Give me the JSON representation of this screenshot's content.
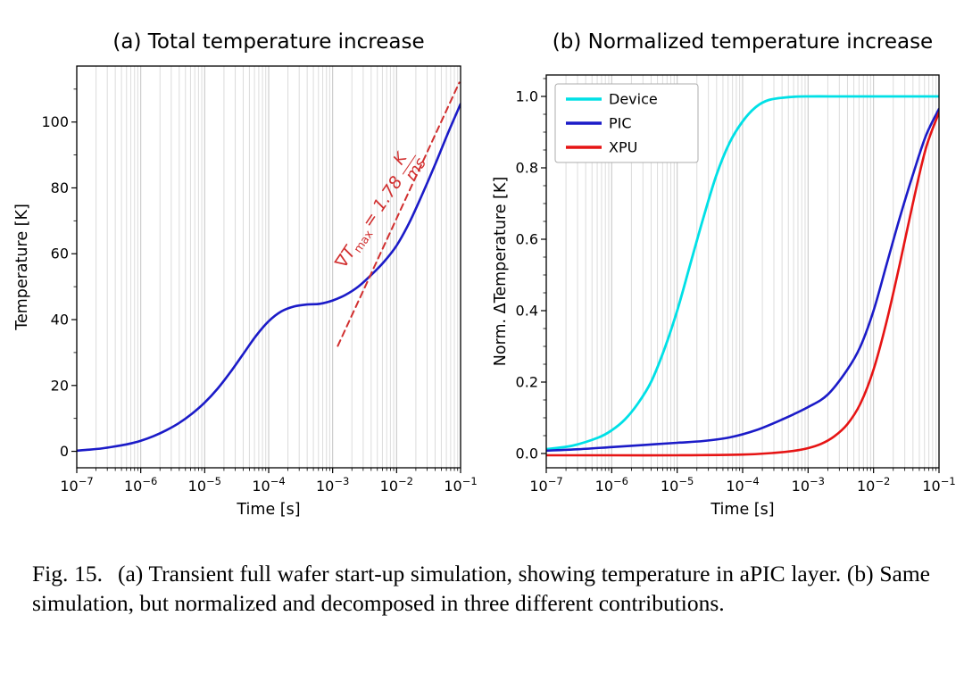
{
  "figure": {
    "caption_label": "Fig. 15.",
    "caption_text": "(a) Transient full wafer start-up simulation, showing temperature in aPIC layer. (b) Same simulation, but normalized and decomposed in three different contributions."
  },
  "colors": {
    "curve_blue": "#1b1bc8",
    "device_cyan": "#00e0e6",
    "xpu_red": "#e61414",
    "tangent_red": "#d12f2f",
    "grid_minor": "#dcdcdc",
    "grid_major": "#c9c9c9",
    "spine": "#000000"
  },
  "chart_data": [
    {
      "type": "line",
      "title": "(a) Total temperature increase",
      "xlabel": "Time [s]",
      "ylabel": "Temperature [K]",
      "xscale": "log",
      "xlim_log10": [
        -7,
        -1
      ],
      "xtick_exponents": [
        -7,
        -6,
        -5,
        -4,
        -3,
        -2,
        -1
      ],
      "ylim": [
        -5,
        117
      ],
      "yticks": [
        0,
        20,
        40,
        60,
        80,
        100
      ],
      "ytick_decimals": 0,
      "ytick_minor_step": 10,
      "grid": "vertical-log",
      "series": [
        {
          "name": "Temperature",
          "color": "#1b1bc8",
          "width": 2.6,
          "points": [
            [
              -7,
              0.2
            ],
            [
              -6.8,
              0.5
            ],
            [
              -6.6,
              0.9
            ],
            [
              -6.4,
              1.5
            ],
            [
              -6.2,
              2.2
            ],
            [
              -6,
              3.2
            ],
            [
              -5.8,
              4.6
            ],
            [
              -5.6,
              6.4
            ],
            [
              -5.4,
              8.6
            ],
            [
              -5.2,
              11.4
            ],
            [
              -5,
              14.8
            ],
            [
              -4.8,
              19
            ],
            [
              -4.6,
              24
            ],
            [
              -4.4,
              29.5
            ],
            [
              -4.2,
              35
            ],
            [
              -4,
              39.5
            ],
            [
              -3.8,
              42.5
            ],
            [
              -3.6,
              44
            ],
            [
              -3.4,
              44.6
            ],
            [
              -3.2,
              44.8
            ],
            [
              -3,
              45.8
            ],
            [
              -2.8,
              47.5
            ],
            [
              -2.6,
              50
            ],
            [
              -2.4,
              53.5
            ],
            [
              -2.2,
              57.5
            ],
            [
              -2,
              62.5
            ],
            [
              -1.8,
              69.5
            ],
            [
              -1.6,
              78
            ],
            [
              -1.4,
              87
            ],
            [
              -1.2,
              96.5
            ],
            [
              -1,
              105.5
            ]
          ]
        },
        {
          "name": "Max-gradient tangent",
          "color": "#d12f2f",
          "width": 2,
          "dash": "7,5",
          "smooth": false,
          "points": [
            [
              -2.92,
              32
            ],
            [
              -1.02,
              112
            ]
          ]
        }
      ],
      "annotation": {
        "symbol": "∇T",
        "subscript": "max",
        "equals": "= 1.78",
        "frac_num": "K",
        "frac_den": "ms",
        "color": "#d12f2f",
        "anchor_log10_x": -2.3,
        "anchor_y": 73,
        "rotation_deg": -56
      }
    },
    {
      "type": "line",
      "title": "(b) Normalized temperature increase",
      "xlabel": "Time [s]",
      "ylabel": "Norm. ΔTemperature [K]",
      "xscale": "log",
      "xlim_log10": [
        -7,
        -1
      ],
      "xtick_exponents": [
        -7,
        -6,
        -5,
        -4,
        -3,
        -2,
        -1
      ],
      "ylim": [
        -0.04,
        1.06
      ],
      "yticks": [
        0,
        0.2,
        0.4,
        0.6,
        0.8,
        1
      ],
      "ytick_decimals": 1,
      "ytick_minor_step": 0.05,
      "grid": "vertical-log",
      "legend": {
        "position": "upper left",
        "entries": [
          "Device",
          "PIC",
          "XPU"
        ]
      },
      "series": [
        {
          "name": "Device",
          "color": "#00e0e6",
          "width": 2.8,
          "points": [
            [
              -7,
              0.012
            ],
            [
              -6.6,
              0.022
            ],
            [
              -6.2,
              0.045
            ],
            [
              -6,
              0.065
            ],
            [
              -5.8,
              0.095
            ],
            [
              -5.6,
              0.14
            ],
            [
              -5.4,
              0.2
            ],
            [
              -5.2,
              0.29
            ],
            [
              -5,
              0.4
            ],
            [
              -4.8,
              0.53
            ],
            [
              -4.6,
              0.66
            ],
            [
              -4.4,
              0.78
            ],
            [
              -4.2,
              0.87
            ],
            [
              -4,
              0.93
            ],
            [
              -3.8,
              0.97
            ],
            [
              -3.6,
              0.99
            ],
            [
              -3.3,
              0.998
            ],
            [
              -3,
              1
            ],
            [
              -2.5,
              1
            ],
            [
              -2,
              1
            ],
            [
              -1.5,
              1
            ],
            [
              -1,
              1
            ]
          ]
        },
        {
          "name": "PIC",
          "color": "#1b1bc8",
          "width": 2.6,
          "points": [
            [
              -7,
              0.008
            ],
            [
              -6.5,
              0.012
            ],
            [
              -6,
              0.018
            ],
            [
              -5.5,
              0.024
            ],
            [
              -5,
              0.03
            ],
            [
              -4.6,
              0.035
            ],
            [
              -4.2,
              0.045
            ],
            [
              -3.8,
              0.065
            ],
            [
              -3.4,
              0.095
            ],
            [
              -3,
              0.13
            ],
            [
              -2.7,
              0.165
            ],
            [
              -2.4,
              0.235
            ],
            [
              -2.2,
              0.3
            ],
            [
              -2,
              0.4
            ],
            [
              -1.8,
              0.53
            ],
            [
              -1.6,
              0.66
            ],
            [
              -1.4,
              0.78
            ],
            [
              -1.2,
              0.89
            ],
            [
              -1,
              0.965
            ]
          ]
        },
        {
          "name": "XPU",
          "color": "#e61414",
          "width": 2.6,
          "points": [
            [
              -7,
              -0.005
            ],
            [
              -6,
              -0.005
            ],
            [
              -5,
              -0.005
            ],
            [
              -4,
              -0.003
            ],
            [
              -3.5,
              0.002
            ],
            [
              -3.2,
              0.008
            ],
            [
              -3,
              0.015
            ],
            [
              -2.8,
              0.027
            ],
            [
              -2.6,
              0.048
            ],
            [
              -2.4,
              0.082
            ],
            [
              -2.2,
              0.14
            ],
            [
              -2,
              0.235
            ],
            [
              -1.8,
              0.37
            ],
            [
              -1.6,
              0.53
            ],
            [
              -1.4,
              0.7
            ],
            [
              -1.2,
              0.855
            ],
            [
              -1,
              0.955
            ]
          ]
        }
      ]
    }
  ]
}
